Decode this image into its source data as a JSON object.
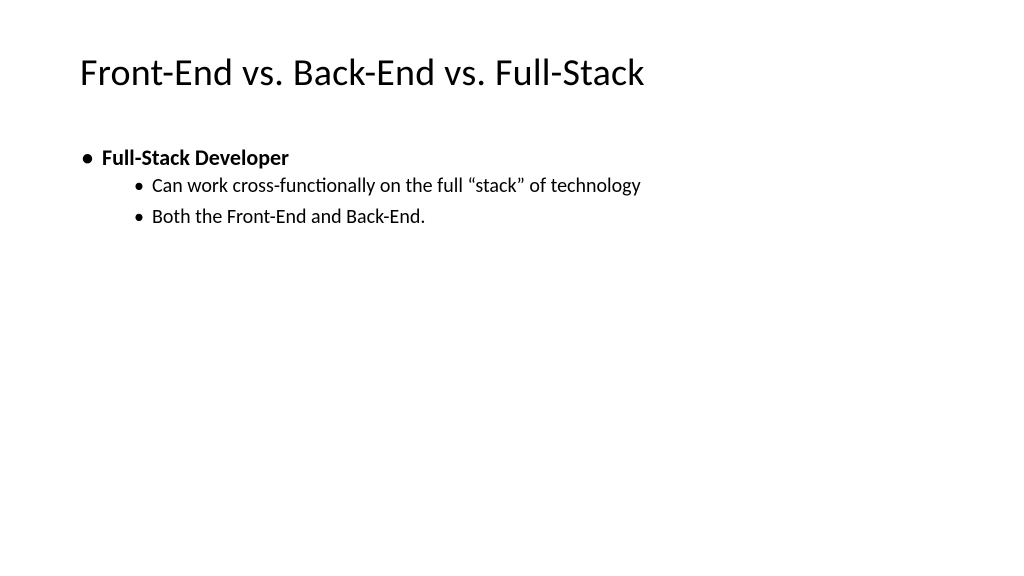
{
  "slide": {
    "title": "Front-End vs. Back-End vs. Full-Stack",
    "background_color": "#ffffff",
    "text_color": "#000000",
    "title_fontsize": 38,
    "bullet_l1_fontsize": 22,
    "bullet_l2_fontsize": 20,
    "font_family": "Calibri",
    "bullets": [
      {
        "label": "Full-Stack Developer",
        "bold": true,
        "children": [
          {
            "label": "Can work cross-functionally on the full “stack” of technology"
          },
          {
            "label": "Both the Front-End and Back-End."
          }
        ]
      }
    ]
  }
}
